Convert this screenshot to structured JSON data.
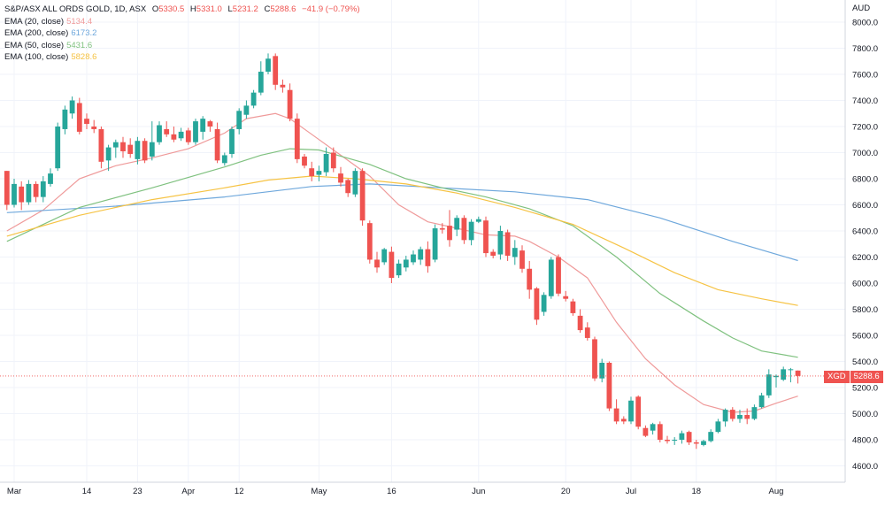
{
  "header": {
    "title": "S&P/ASX ALL ORDS GOLD, 1D, ASX",
    "open_label": "O",
    "open": "5330.5",
    "high_label": "H",
    "high": "5331.0",
    "low_label": "L",
    "low": "5231.2",
    "close_label": "C",
    "close": "5288.6",
    "change": "−41.9 (−0.79%)"
  },
  "legend": [
    {
      "name": "EMA (20, close)",
      "value": "5134.4",
      "color": "#ef9a9a"
    },
    {
      "name": "EMA (200, close)",
      "value": "6173.2",
      "color": "#6fa8dc"
    },
    {
      "name": "EMA (50, close)",
      "value": "5431.6",
      "color": "#7fc17f"
    },
    {
      "name": "EMA (100, close)",
      "value": "5828.6",
      "color": "#f6c344"
    }
  ],
  "currency": "AUD",
  "last_price": {
    "symbol": "XGD",
    "value": "5288.6"
  },
  "colors": {
    "up": "#26a69a",
    "down": "#ef5350",
    "grid": "#f0f3fa",
    "axis_text": "#131722"
  },
  "chart_data": {
    "type": "candlestick",
    "title": "S&P/ASX ALL ORDS GOLD, 1D, ASX",
    "ylim": [
      4500,
      8100
    ],
    "y_ticks": [
      4600,
      4800,
      5000,
      5200,
      5400,
      5600,
      5800,
      6000,
      6200,
      6400,
      6600,
      6800,
      7000,
      7200,
      7400,
      7600,
      7800,
      8000
    ],
    "y_tick_labels": [
      "4600.0",
      "4800.0",
      "5000.0",
      "5200.0",
      "5400.0",
      "5600.0",
      "5800.0",
      "6000.0",
      "6200.0",
      "6400.0",
      "6600.0",
      "6800.0",
      "7000.0",
      "7200.0",
      "7400.0",
      "7600.0",
      "7800.0",
      "8000.0"
    ],
    "x_ticks": [
      {
        "label": "Mar",
        "bar": 1
      },
      {
        "label": "14",
        "bar": 11
      },
      {
        "label": "23",
        "bar": 18
      },
      {
        "label": "Apr",
        "bar": 25
      },
      {
        "label": "12",
        "bar": 32
      },
      {
        "label": "May",
        "bar": 43
      },
      {
        "label": "16",
        "bar": 53
      },
      {
        "label": "Jun",
        "bar": 65
      },
      {
        "label": "20",
        "bar": 77
      },
      {
        "label": "Jul",
        "bar": 86
      },
      {
        "label": "18",
        "bar": 95
      },
      {
        "label": "Aug",
        "bar": 106
      }
    ],
    "candles": [
      [
        6860,
        6860,
        6560,
        6600
      ],
      [
        6600,
        6800,
        6580,
        6760
      ],
      [
        6740,
        6780,
        6560,
        6620
      ],
      [
        6620,
        6790,
        6600,
        6760
      ],
      [
        6760,
        6780,
        6620,
        6660
      ],
      [
        6660,
        6820,
        6620,
        6780
      ],
      [
        6760,
        6880,
        6740,
        6840
      ],
      [
        6880,
        7230,
        6860,
        7200
      ],
      [
        7180,
        7360,
        7140,
        7330
      ],
      [
        7300,
        7430,
        7260,
        7400
      ],
      [
        7380,
        7420,
        7140,
        7160
      ],
      [
        7260,
        7300,
        7180,
        7220
      ],
      [
        7200,
        7250,
        7150,
        7180
      ],
      [
        7180,
        7200,
        6880,
        6930
      ],
      [
        6940,
        7060,
        6860,
        7040
      ],
      [
        7040,
        7100,
        6960,
        7080
      ],
      [
        7080,
        7120,
        6960,
        7010
      ],
      [
        7060,
        7110,
        6960,
        6990
      ],
      [
        6950,
        7120,
        6910,
        7090
      ],
      [
        7090,
        7110,
        6920,
        6940
      ],
      [
        6970,
        7240,
        6940,
        7080
      ],
      [
        7080,
        7240,
        7060,
        7210
      ],
      [
        7180,
        7240,
        7120,
        7140
      ],
      [
        7140,
        7200,
        7080,
        7100
      ],
      [
        7110,
        7190,
        7090,
        7160
      ],
      [
        7170,
        7190,
        7060,
        7080
      ],
      [
        7080,
        7260,
        7060,
        7240
      ],
      [
        7160,
        7280,
        7100,
        7260
      ],
      [
        7240,
        7250,
        7160,
        7200
      ],
      [
        7180,
        7230,
        6920,
        6940
      ],
      [
        6920,
        7000,
        6900,
        6980
      ],
      [
        6990,
        7200,
        6960,
        7180
      ],
      [
        7180,
        7340,
        7140,
        7320
      ],
      [
        7290,
        7400,
        7260,
        7360
      ],
      [
        7360,
        7480,
        7340,
        7460
      ],
      [
        7460,
        7700,
        7440,
        7620
      ],
      [
        7620,
        7760,
        7600,
        7720
      ],
      [
        7740,
        7760,
        7480,
        7520
      ],
      [
        7520,
        7560,
        7460,
        7500
      ],
      [
        7480,
        7530,
        7240,
        7260
      ],
      [
        7260,
        7300,
        6920,
        6950
      ],
      [
        6970,
        6990,
        6880,
        6900
      ],
      [
        6880,
        6930,
        6780,
        6820
      ],
      [
        6830,
        6900,
        6780,
        6860
      ],
      [
        6850,
        7040,
        6820,
        6990
      ],
      [
        7000,
        7040,
        6850,
        6880
      ],
      [
        6840,
        6890,
        6740,
        6770
      ],
      [
        6790,
        6800,
        6660,
        6690
      ],
      [
        6680,
        6880,
        6660,
        6860
      ],
      [
        6860,
        6880,
        6440,
        6480
      ],
      [
        6460,
        6480,
        6150,
        6180
      ],
      [
        6180,
        6240,
        6080,
        6120
      ],
      [
        6160,
        6270,
        6140,
        6260
      ],
      [
        6240,
        6280,
        6000,
        6040
      ],
      [
        6060,
        6180,
        6040,
        6150
      ],
      [
        6120,
        6210,
        6090,
        6180
      ],
      [
        6160,
        6250,
        6140,
        6220
      ],
      [
        6180,
        6280,
        6140,
        6260
      ],
      [
        6260,
        6320,
        6080,
        6130
      ],
      [
        6180,
        6450,
        6160,
        6420
      ],
      [
        6420,
        6460,
        6380,
        6410
      ],
      [
        6440,
        6560,
        6280,
        6330
      ],
      [
        6410,
        6520,
        6360,
        6500
      ],
      [
        6500,
        6520,
        6300,
        6330
      ],
      [
        6330,
        6490,
        6290,
        6470
      ],
      [
        6470,
        6510,
        6460,
        6490
      ],
      [
        6480,
        6510,
        6200,
        6230
      ],
      [
        6240,
        6260,
        6190,
        6210
      ],
      [
        6220,
        6440,
        6180,
        6400
      ],
      [
        6390,
        6410,
        6170,
        6210
      ],
      [
        6200,
        6330,
        6140,
        6270
      ],
      [
        6250,
        6290,
        6080,
        6110
      ],
      [
        6110,
        6170,
        5880,
        5950
      ],
      [
        5960,
        5970,
        5680,
        5720
      ],
      [
        5780,
        5930,
        5750,
        5910
      ],
      [
        5900,
        6200,
        5880,
        6180
      ],
      [
        6200,
        6220,
        5900,
        5920
      ],
      [
        5900,
        5940,
        5860,
        5880
      ],
      [
        5860,
        5880,
        5750,
        5770
      ],
      [
        5750,
        5800,
        5620,
        5640
      ],
      [
        5660,
        5700,
        5560,
        5580
      ],
      [
        5570,
        5590,
        5250,
        5270
      ],
      [
        5270,
        5420,
        5240,
        5390
      ],
      [
        5390,
        5400,
        5020,
        5040
      ],
      [
        5040,
        5110,
        4920,
        4940
      ],
      [
        4960,
        4980,
        4920,
        4940
      ],
      [
        4940,
        5130,
        4920,
        5100
      ],
      [
        5130,
        5140,
        4880,
        4900
      ],
      [
        4890,
        4910,
        4820,
        4830
      ],
      [
        4870,
        4930,
        4840,
        4920
      ],
      [
        4920,
        4940,
        4780,
        4800
      ],
      [
        4800,
        4830,
        4770,
        4790
      ],
      [
        4800,
        4820,
        4760,
        4800
      ],
      [
        4800,
        4870,
        4770,
        4850
      ],
      [
        4860,
        4870,
        4760,
        4780
      ],
      [
        4780,
        4800,
        4730,
        4770
      ],
      [
        4760,
        4800,
        4750,
        4790
      ],
      [
        4790,
        4880,
        4780,
        4860
      ],
      [
        4860,
        4960,
        4850,
        4940
      ],
      [
        4940,
        5040,
        4900,
        5030
      ],
      [
        5030,
        5050,
        4940,
        4960
      ],
      [
        4960,
        5030,
        4930,
        4990
      ],
      [
        4990,
        5040,
        4920,
        4960
      ],
      [
        4960,
        5070,
        4950,
        5050
      ],
      [
        5050,
        5160,
        5040,
        5140
      ],
      [
        5140,
        5340,
        5120,
        5300
      ],
      [
        5280,
        5300,
        5200,
        5290
      ],
      [
        5260,
        5360,
        5250,
        5340
      ],
      [
        5340,
        5350,
        5240,
        5340
      ],
      [
        5330,
        5331,
        5231,
        5289
      ]
    ],
    "series": [
      {
        "name": "EMA (20, close)",
        "points": [
          [
            0,
            6400
          ],
          [
            5,
            6560
          ],
          [
            10,
            6800
          ],
          [
            15,
            6900
          ],
          [
            20,
            6960
          ],
          [
            25,
            7030
          ],
          [
            30,
            7150
          ],
          [
            33,
            7260
          ],
          [
            37,
            7300
          ],
          [
            39,
            7260
          ],
          [
            42,
            7140
          ],
          [
            46,
            6980
          ],
          [
            50,
            6820
          ],
          [
            54,
            6600
          ],
          [
            58,
            6470
          ],
          [
            62,
            6420
          ],
          [
            66,
            6370
          ],
          [
            70,
            6360
          ],
          [
            72,
            6320
          ],
          [
            76,
            6200
          ],
          [
            80,
            6040
          ],
          [
            84,
            5700
          ],
          [
            88,
            5420
          ],
          [
            92,
            5220
          ],
          [
            96,
            5070
          ],
          [
            100,
            5010
          ],
          [
            103,
            5020
          ],
          [
            106,
            5080
          ],
          [
            109,
            5134
          ]
        ]
      },
      {
        "name": "EMA (200, close)",
        "points": [
          [
            0,
            6540
          ],
          [
            15,
            6590
          ],
          [
            30,
            6660
          ],
          [
            42,
            6740
          ],
          [
            50,
            6760
          ],
          [
            60,
            6730
          ],
          [
            70,
            6700
          ],
          [
            80,
            6640
          ],
          [
            90,
            6500
          ],
          [
            100,
            6320
          ],
          [
            109,
            6173
          ]
        ]
      },
      {
        "name": "EMA (50, close)",
        "points": [
          [
            0,
            6320
          ],
          [
            10,
            6580
          ],
          [
            20,
            6730
          ],
          [
            30,
            6890
          ],
          [
            35,
            6980
          ],
          [
            39,
            7030
          ],
          [
            43,
            7020
          ],
          [
            50,
            6910
          ],
          [
            55,
            6800
          ],
          [
            60,
            6730
          ],
          [
            66,
            6660
          ],
          [
            72,
            6570
          ],
          [
            78,
            6440
          ],
          [
            84,
            6200
          ],
          [
            90,
            5920
          ],
          [
            96,
            5710
          ],
          [
            100,
            5580
          ],
          [
            104,
            5480
          ],
          [
            109,
            5432
          ]
        ]
      },
      {
        "name": "EMA (100, close)",
        "points": [
          [
            0,
            6360
          ],
          [
            10,
            6520
          ],
          [
            20,
            6640
          ],
          [
            30,
            6730
          ],
          [
            36,
            6790
          ],
          [
            42,
            6820
          ],
          [
            48,
            6800
          ],
          [
            55,
            6760
          ],
          [
            62,
            6690
          ],
          [
            70,
            6580
          ],
          [
            78,
            6450
          ],
          [
            85,
            6270
          ],
          [
            92,
            6080
          ],
          [
            98,
            5950
          ],
          [
            104,
            5880
          ],
          [
            109,
            5829
          ]
        ]
      }
    ],
    "last_price_line": 5288.6
  }
}
